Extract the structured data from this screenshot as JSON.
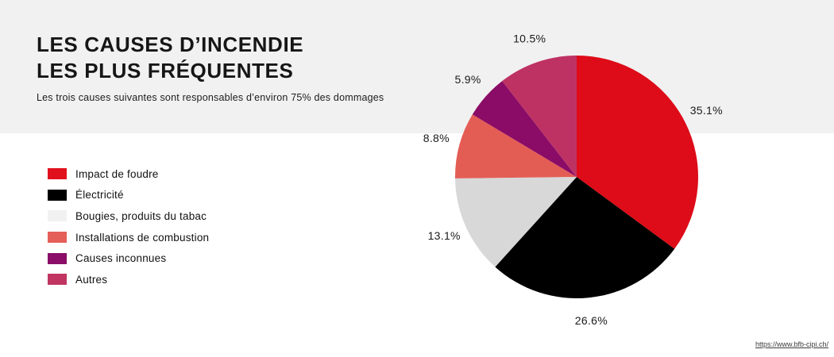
{
  "page": {
    "background": "#ffffff",
    "band_background": "#f1f1f1"
  },
  "header": {
    "title_line1": "LES CAUSES D’INCENDIE",
    "title_line2": "LES PLUS FRÉQUENTES",
    "subtitle": "Les trois causes suivantes sont responsables d’environ 75% des dommages"
  },
  "legend": {
    "items": [
      {
        "label": "Impact de foudre",
        "color": "#e1101d"
      },
      {
        "label": "Électricité",
        "color": "#000000"
      },
      {
        "label": "Bougies, produits du tabac",
        "color": "#f2f1f2"
      },
      {
        "label": "Installations de combustion",
        "color": "#e45f58"
      },
      {
        "label": "Causes inconnues",
        "color": "#8b0d68"
      },
      {
        "label": "Autres",
        "color": "#c03561"
      }
    ]
  },
  "chart_data": {
    "type": "pie",
    "title": "Les causes d’incendie les plus fréquentes",
    "subtitle": "Les trois causes suivantes sont responsables d’environ 75% des dommages",
    "unit": "percent",
    "start_angle_deg": 0,
    "direction": "clockwise",
    "legend_position": "left",
    "slices": [
      {
        "label": "Impact de foudre",
        "value": 35.1,
        "color": "#dd0c18"
      },
      {
        "label": "Électricité",
        "value": 26.6,
        "color": "#000000"
      },
      {
        "label": "Bougies, produits du tabac",
        "value": 13.1,
        "color": "#d8d8d8"
      },
      {
        "label": "Installations de combustion",
        "value": 8.8,
        "color": "#e45d55"
      },
      {
        "label": "Causes inconnues",
        "value": 5.9,
        "color": "#8a0c66"
      },
      {
        "label": "Autres",
        "value": 10.5,
        "color": "#be3263"
      }
    ]
  },
  "footer": {
    "source_link": "https://www.bfb-cipi.ch/"
  }
}
